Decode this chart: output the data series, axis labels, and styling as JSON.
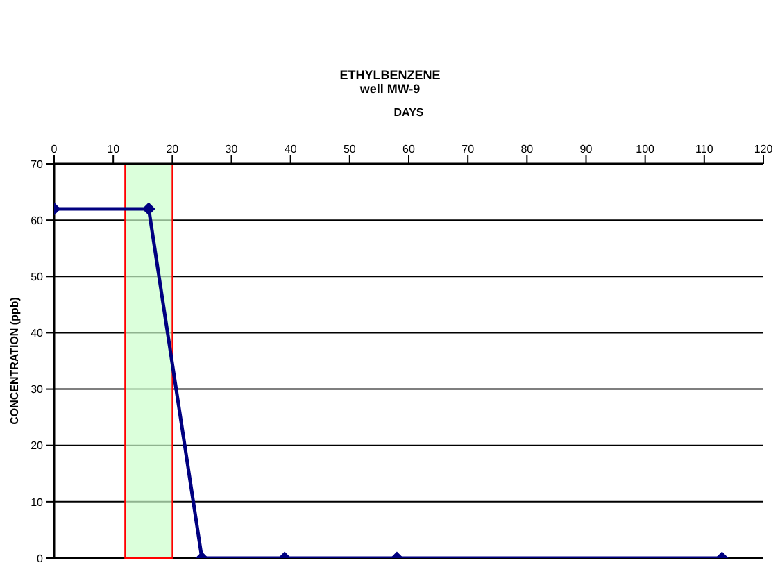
{
  "chart_data": {
    "type": "line",
    "title": "ETHYLBENZENE",
    "subtitle": "well MW-9",
    "xlabel": "DAYS",
    "ylabel": "CONCENTRATION (ppb)",
    "x": [
      0,
      16,
      25,
      39,
      58,
      113
    ],
    "series": [
      {
        "color": "#000080",
        "values": [
          62,
          62,
          0,
          0,
          0,
          0
        ]
      }
    ],
    "xlim": [
      0,
      120
    ],
    "xticks": [
      0,
      10,
      20,
      30,
      40,
      50,
      60,
      70,
      80,
      90,
      100,
      110,
      120
    ],
    "ylim": [
      0,
      70
    ],
    "yticks": [
      0,
      10,
      20,
      30,
      40,
      50,
      60,
      70
    ],
    "bands": [
      {
        "axis": "x",
        "from": 12,
        "to": 20,
        "color": "#ccffcc"
      }
    ],
    "grid": "y",
    "marker": "diamond",
    "line_style": "solid"
  }
}
